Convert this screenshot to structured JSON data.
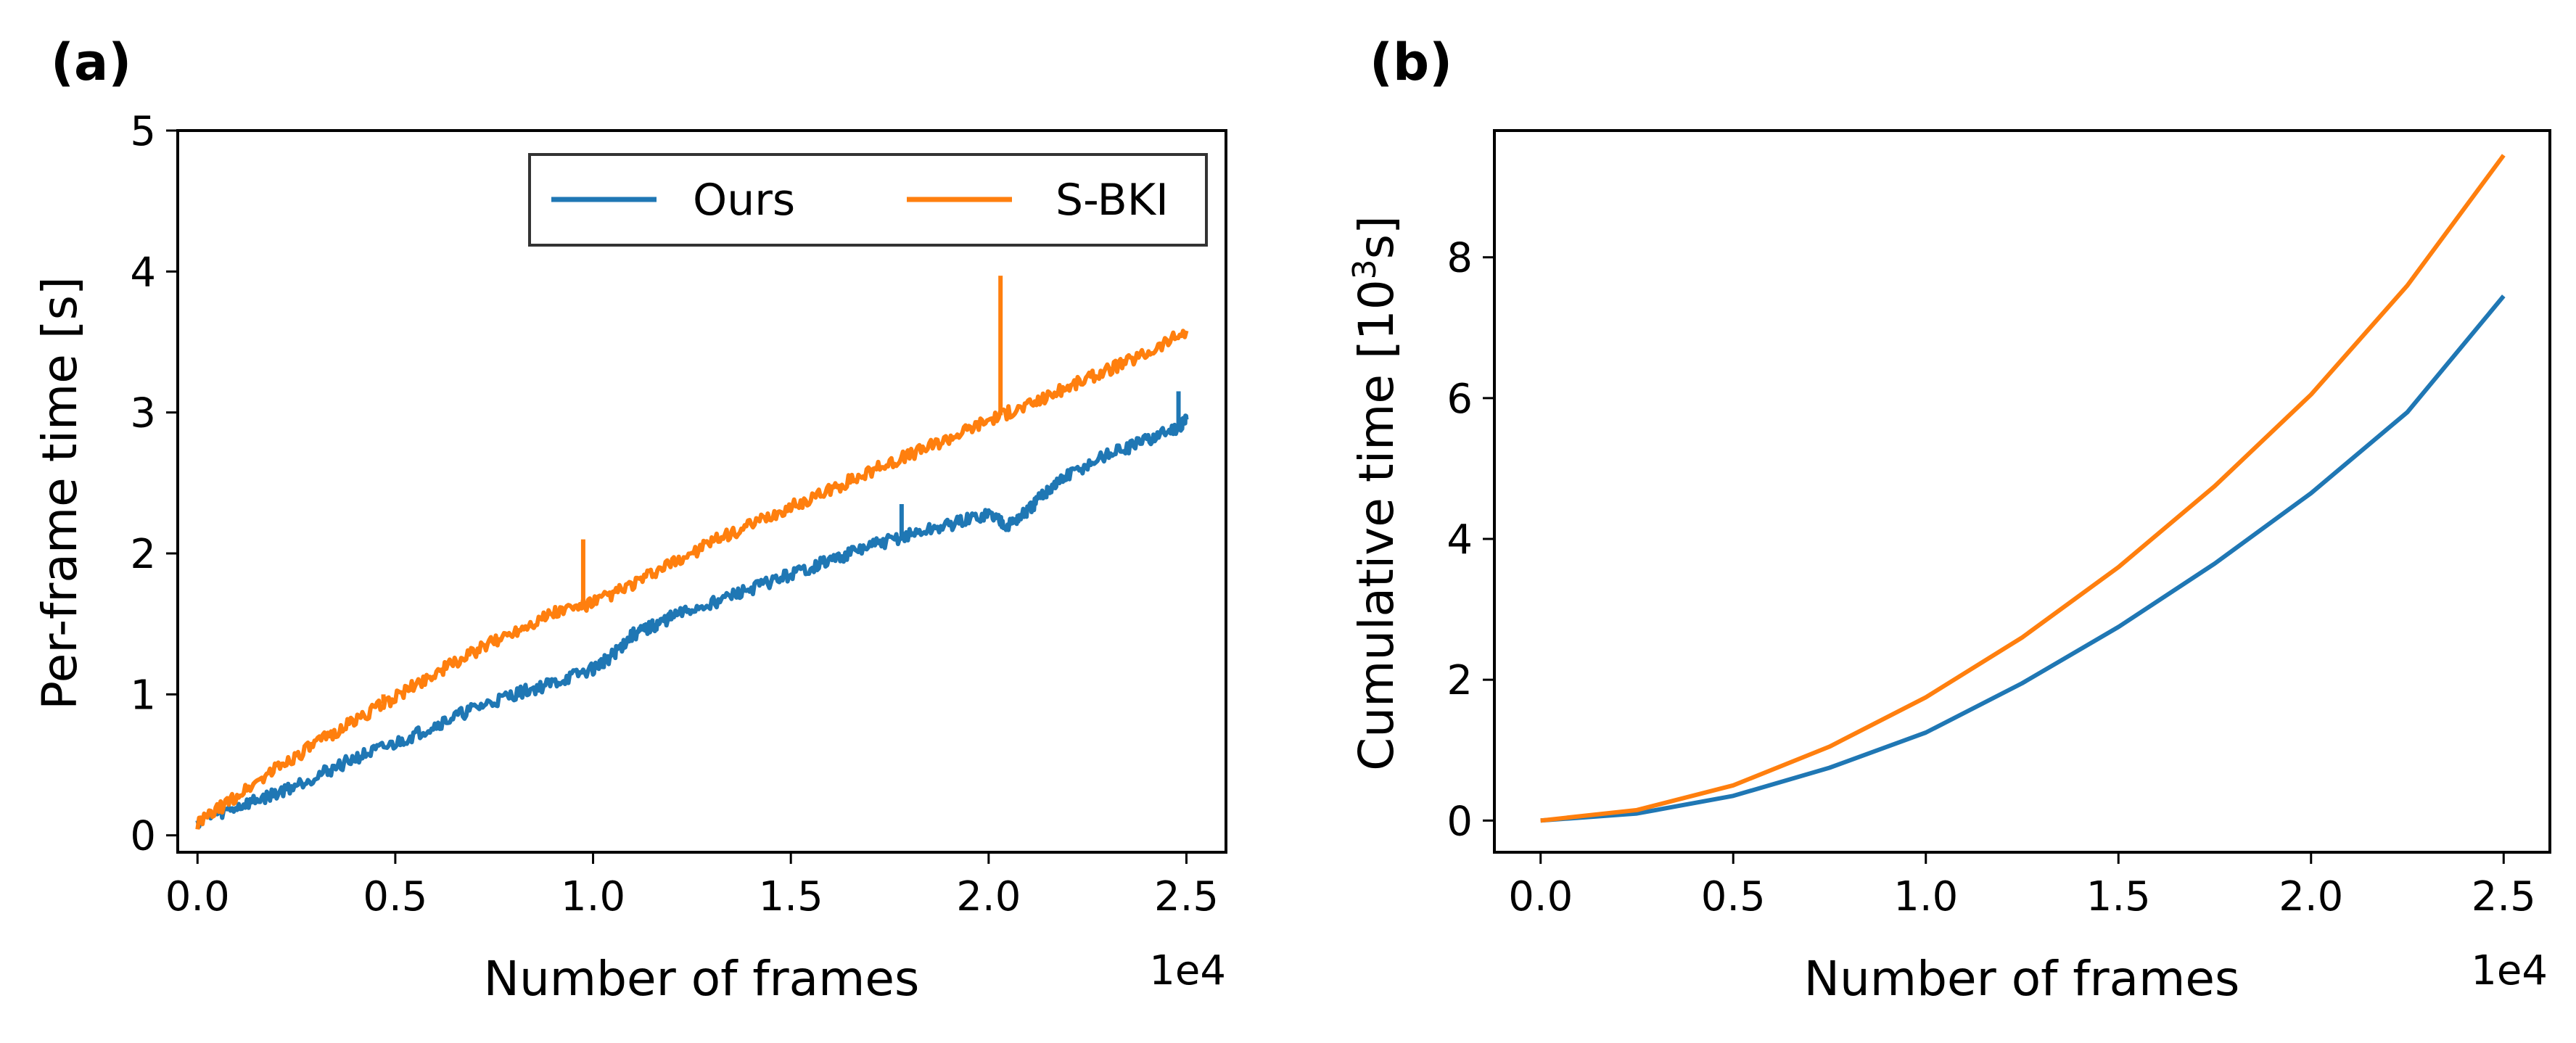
{
  "chart_data": [
    {
      "panel_label": "(a)",
      "type": "line",
      "xlabel": "Number of frames",
      "ylabel": "Per-frame time [s]",
      "x_offset_text": "1e4",
      "xlim": [
        -0.05,
        2.6
      ],
      "ylim": [
        -0.12,
        5
      ],
      "x_ticks": [
        0.0,
        0.5,
        1.0,
        1.5,
        2.0,
        2.5
      ],
      "x_tick_labels": [
        "0.0",
        "0.5",
        "1.0",
        "1.5",
        "2.0",
        "2.5"
      ],
      "y_ticks": [
        0,
        1,
        2,
        3,
        4,
        5
      ],
      "y_tick_labels": [
        "0",
        "1",
        "2",
        "3",
        "4",
        "5"
      ],
      "legend": {
        "location": "top-right",
        "columns": 2
      },
      "series": [
        {
          "name": "Ours",
          "color": "#1f77b4",
          "x": [
            0,
            0.1,
            0.2,
            0.3,
            0.4,
            0.5,
            0.6,
            0.7,
            0.8,
            0.9,
            1.0,
            1.05,
            1.1,
            1.15,
            1.2,
            1.3,
            1.4,
            1.5,
            1.6,
            1.7,
            1.8,
            1.9,
            2.0,
            2.05,
            2.1,
            2.15,
            2.2,
            2.3,
            2.4,
            2.48,
            2.5
          ],
          "values": [
            0.1,
            0.2,
            0.3,
            0.42,
            0.55,
            0.65,
            0.78,
            0.9,
            1.0,
            1.08,
            1.18,
            1.28,
            1.42,
            1.48,
            1.55,
            1.65,
            1.75,
            1.85,
            1.95,
            2.05,
            2.13,
            2.2,
            2.28,
            2.2,
            2.3,
            2.45,
            2.55,
            2.7,
            2.8,
            2.9,
            2.95
          ],
          "spikes": [
            [
              1.78,
              2.35
            ],
            [
              2.48,
              3.15
            ]
          ]
        },
        {
          "name": "S-BKI",
          "color": "#ff7f0e",
          "x": [
            0,
            0.1,
            0.2,
            0.3,
            0.4,
            0.5,
            0.6,
            0.7,
            0.8,
            0.9,
            1.0,
            1.1,
            1.2,
            1.3,
            1.4,
            1.5,
            1.6,
            1.7,
            1.8,
            1.9,
            2.0,
            2.1,
            2.2,
            2.3,
            2.4,
            2.5
          ],
          "values": [
            0.08,
            0.28,
            0.48,
            0.65,
            0.82,
            0.98,
            1.15,
            1.3,
            1.45,
            1.58,
            1.65,
            1.78,
            1.93,
            2.08,
            2.2,
            2.33,
            2.45,
            2.58,
            2.7,
            2.82,
            2.95,
            3.05,
            3.18,
            3.3,
            3.42,
            3.58
          ],
          "spikes": [
            [
              0.47,
              1.0
            ],
            [
              0.975,
              2.1
            ],
            [
              2.03,
              3.97
            ]
          ]
        }
      ]
    },
    {
      "panel_label": "(b)",
      "type": "line",
      "xlabel": "Number of frames",
      "ylabel": "Cumulative time [10",
      "ylabel_sup": "3",
      "ylabel_unit": "s]",
      "x_offset_text": "1e4",
      "xlim": [
        -0.12,
        2.62
      ],
      "ylim": [
        -0.45,
        9.8
      ],
      "x_ticks": [
        0.0,
        0.5,
        1.0,
        1.5,
        2.0,
        2.5
      ],
      "x_tick_labels": [
        "0.0",
        "0.5",
        "1.0",
        "1.5",
        "2.0",
        "2.5"
      ],
      "y_ticks": [
        0,
        2,
        4,
        6,
        8
      ],
      "y_tick_labels": [
        "0",
        "2",
        "4",
        "6",
        "8"
      ],
      "series": [
        {
          "name": "Ours",
          "color": "#1f77b4",
          "x": [
            0,
            0.25,
            0.5,
            0.75,
            1.0,
            1.25,
            1.5,
            1.75,
            2.0,
            2.25,
            2.5
          ],
          "values": [
            0,
            0.1,
            0.35,
            0.75,
            1.25,
            1.95,
            2.75,
            3.65,
            4.65,
            5.8,
            7.45
          ]
        },
        {
          "name": "S-BKI",
          "color": "#ff7f0e",
          "x": [
            0,
            0.25,
            0.5,
            0.75,
            1.0,
            1.25,
            1.5,
            1.75,
            2.0,
            2.25,
            2.5
          ],
          "values": [
            0,
            0.15,
            0.5,
            1.05,
            1.75,
            2.6,
            3.6,
            4.75,
            6.05,
            7.6,
            9.45
          ]
        }
      ]
    }
  ]
}
